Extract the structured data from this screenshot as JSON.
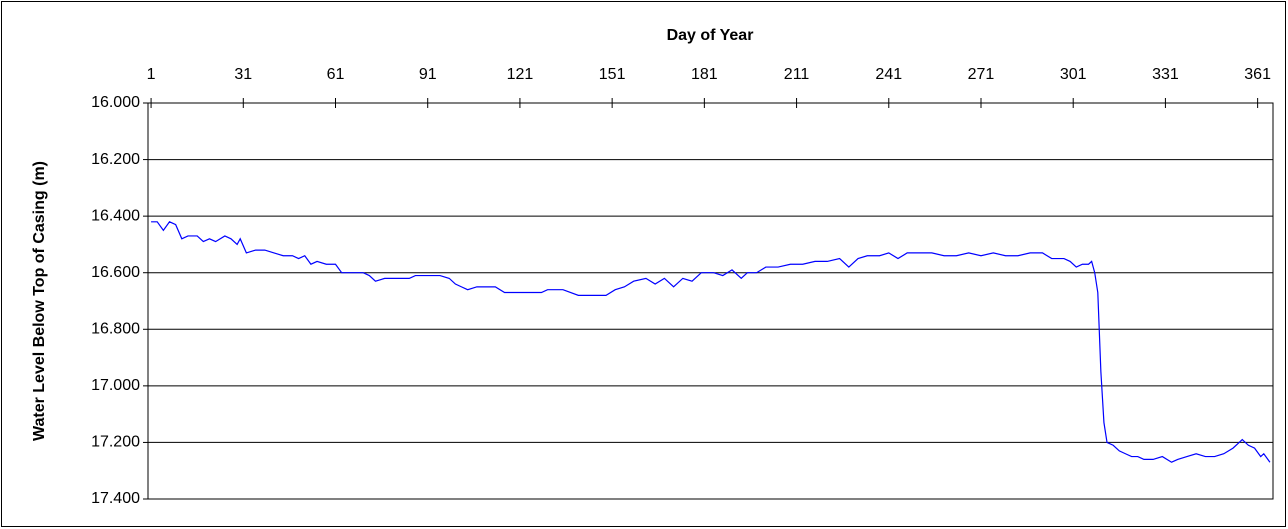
{
  "chart_data": {
    "type": "line",
    "xlabel": "Day of Year",
    "ylabel": "Water Level Below Top of Casing (m)",
    "color": "#0000ff",
    "inverted_y": true,
    "grid": true,
    "xlim": [
      0,
      366
    ],
    "ylim": [
      16,
      17.4
    ],
    "xticks": [
      1,
      31,
      61,
      91,
      121,
      151,
      181,
      211,
      241,
      271,
      301,
      331,
      361
    ],
    "yticks": [
      {
        "value": 16,
        "label": "16.000"
      },
      {
        "value": 16.2,
        "label": "16.200"
      },
      {
        "value": 16.4,
        "label": "16.400"
      },
      {
        "value": 16.6,
        "label": "16.600"
      },
      {
        "value": 16.8,
        "label": "16.800"
      },
      {
        "value": 17,
        "label": "17.000"
      },
      {
        "value": 17.2,
        "label": "17.200"
      },
      {
        "value": 17.4,
        "label": "17.400"
      }
    ],
    "x": [
      1,
      3,
      5,
      7,
      9,
      11,
      13,
      16,
      18,
      20,
      22,
      25,
      27,
      29,
      30,
      32,
      35,
      38,
      41,
      44,
      47,
      49,
      51,
      53,
      55,
      58,
      61,
      63,
      67,
      70,
      72,
      74,
      77,
      80,
      83,
      85,
      87,
      91,
      95,
      98,
      100,
      102,
      104,
      107,
      110,
      113,
      116,
      120,
      125,
      128,
      130,
      135,
      140,
      146,
      149,
      152,
      155,
      158,
      162,
      165,
      168,
      171,
      174,
      177,
      180,
      184,
      187,
      190,
      193,
      195,
      198,
      201,
      205,
      209,
      213,
      217,
      221,
      225,
      228,
      231,
      234,
      238,
      241,
      244,
      247,
      251,
      255,
      259,
      263,
      267,
      271,
      275,
      279,
      283,
      287,
      291,
      294,
      298,
      300,
      302,
      304,
      306,
      307,
      308,
      309,
      310,
      311,
      312,
      314,
      316,
      318,
      320,
      322,
      324,
      327,
      330,
      333,
      335,
      338,
      341,
      344,
      347,
      350,
      353,
      355,
      356,
      358,
      360,
      362,
      363,
      365
    ],
    "values": [
      16.42,
      16.42,
      16.45,
      16.42,
      16.43,
      16.48,
      16.47,
      16.47,
      16.49,
      16.48,
      16.49,
      16.47,
      16.48,
      16.5,
      16.48,
      16.53,
      16.52,
      16.52,
      16.53,
      16.54,
      16.54,
      16.55,
      16.54,
      16.57,
      16.56,
      16.57,
      16.57,
      16.6,
      16.6,
      16.6,
      16.61,
      16.63,
      16.62,
      16.62,
      16.62,
      16.62,
      16.61,
      16.61,
      16.61,
      16.62,
      16.64,
      16.65,
      16.66,
      16.65,
      16.65,
      16.65,
      16.67,
      16.67,
      16.67,
      16.67,
      16.66,
      16.66,
      16.68,
      16.68,
      16.68,
      16.66,
      16.65,
      16.63,
      16.62,
      16.64,
      16.62,
      16.65,
      16.62,
      16.63,
      16.6,
      16.6,
      16.61,
      16.59,
      16.62,
      16.6,
      16.6,
      16.58,
      16.58,
      16.57,
      16.57,
      16.56,
      16.56,
      16.55,
      16.58,
      16.55,
      16.54,
      16.54,
      16.53,
      16.55,
      16.53,
      16.53,
      16.53,
      16.54,
      16.54,
      16.53,
      16.54,
      16.53,
      16.54,
      16.54,
      16.53,
      16.53,
      16.55,
      16.55,
      16.56,
      16.58,
      16.57,
      16.57,
      16.56,
      16.6,
      16.67,
      16.95,
      17.13,
      17.2,
      17.21,
      17.23,
      17.24,
      17.25,
      17.25,
      17.26,
      17.26,
      17.25,
      17.27,
      17.26,
      17.25,
      17.24,
      17.25,
      17.25,
      17.24,
      17.22,
      17.2,
      17.19,
      17.21,
      17.22,
      17.25,
      17.24,
      17.27
    ]
  }
}
